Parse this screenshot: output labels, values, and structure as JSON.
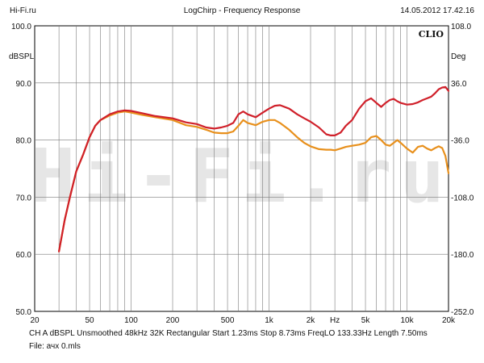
{
  "header": {
    "left": "Hi-Fi.ru",
    "center": "LogChirp - Frequency Response",
    "right": "14.05.2012 17.42.16"
  },
  "chart_data": {
    "type": "line",
    "title": "LogChirp - Frequency Response",
    "brand_mark": "CLIO",
    "watermark_text": "Hi-Fi.ru",
    "xlabel": "Hz",
    "x_scale": "log",
    "xlim": [
      20,
      20000
    ],
    "x_ticks": [
      20,
      50,
      100,
      200,
      500,
      1000,
      2000,
      5000,
      10000,
      20000
    ],
    "x_tick_labels": [
      "20",
      "50",
      "100",
      "200",
      "500",
      "1k",
      "2k",
      "5k",
      "10k",
      "20k"
    ],
    "ylabel_left": "dBSPL",
    "ylim_left": [
      50,
      100
    ],
    "y_ticks_left": [
      "50.0",
      "60.0",
      "70.0",
      "80.0",
      "90.0",
      "100.0"
    ],
    "ylabel_right": "Deg",
    "ylim_right": [
      -252,
      108
    ],
    "y_ticks_right": [
      "-252.0",
      "-180.0",
      "-108.0",
      "-36.0",
      "36.0",
      "108.0"
    ],
    "grid": true,
    "series": [
      {
        "color": "#d0202a",
        "x": [
          30,
          33,
          36,
          40,
          45,
          50,
          55,
          60,
          70,
          80,
          90,
          100,
          120,
          150,
          200,
          250,
          300,
          350,
          400,
          450,
          500,
          550,
          600,
          650,
          700,
          800,
          900,
          1000,
          1100,
          1200,
          1400,
          1600,
          1800,
          2000,
          2300,
          2600,
          2800,
          3000,
          3300,
          3600,
          4000,
          4500,
          5000,
          5500,
          6000,
          6500,
          7000,
          7500,
          8000,
          8500,
          9000,
          10000,
          11000,
          12000,
          13000,
          14000,
          15000,
          16000,
          17000,
          18000,
          19000,
          20000
        ],
        "y": [
          60.5,
          66,
          70,
          74.5,
          77.5,
          80.5,
          82.5,
          83.5,
          84.5,
          85,
          85.2,
          85.1,
          84.7,
          84.2,
          83.8,
          83.1,
          82.8,
          82.2,
          82,
          82.2,
          82.5,
          83,
          84.5,
          85,
          84.5,
          84,
          84.8,
          85.5,
          86,
          86.1,
          85.5,
          84.5,
          83.8,
          83.2,
          82.2,
          81,
          80.8,
          80.8,
          81.3,
          82.5,
          83.5,
          85.5,
          86.8,
          87.3,
          86.5,
          85.8,
          86.5,
          87,
          87.2,
          86.8,
          86.5,
          86.2,
          86.3,
          86.6,
          87,
          87.3,
          87.6,
          88.2,
          88.9,
          89.2,
          89.3,
          88.6
        ]
      },
      {
        "color": "#e8901c",
        "x": [
          30,
          33,
          36,
          40,
          45,
          50,
          55,
          60,
          70,
          80,
          90,
          100,
          120,
          150,
          200,
          250,
          300,
          350,
          400,
          450,
          500,
          550,
          600,
          650,
          700,
          800,
          900,
          1000,
          1100,
          1200,
          1400,
          1600,
          1800,
          2000,
          2300,
          2600,
          2800,
          3000,
          3300,
          3600,
          4000,
          4500,
          5000,
          5500,
          6000,
          6500,
          7000,
          7500,
          8000,
          8500,
          9000,
          10000,
          11000,
          12000,
          13000,
          14000,
          15000,
          16000,
          17000,
          18000,
          19000,
          20000
        ],
        "y": [
          60.5,
          66,
          70,
          74.5,
          77.5,
          80.5,
          82.5,
          83.5,
          84.3,
          84.8,
          85,
          84.8,
          84.4,
          84,
          83.5,
          82.6,
          82.3,
          81.8,
          81.3,
          81.2,
          81.2,
          81.5,
          82.5,
          83.5,
          83,
          82.6,
          83.2,
          83.5,
          83.5,
          83,
          81.8,
          80.5,
          79.5,
          78.9,
          78.4,
          78.3,
          78.3,
          78.2,
          78.5,
          78.8,
          79,
          79.2,
          79.5,
          80.5,
          80.7,
          80,
          79.2,
          79,
          79.5,
          80,
          79.5,
          78.5,
          77.8,
          78.8,
          79,
          78.5,
          78.2,
          78.6,
          78.9,
          78.6,
          77.2,
          74.2
        ]
      }
    ]
  },
  "footer": {
    "info": "CH A   dBSPL   Unsmoothed   48kHz   32K   Rectangular   Start 1.23ms   Stop 8.73ms   FreqLO 133.33Hz   Length 7.50ms",
    "file": "File: ачх 0.mls"
  }
}
